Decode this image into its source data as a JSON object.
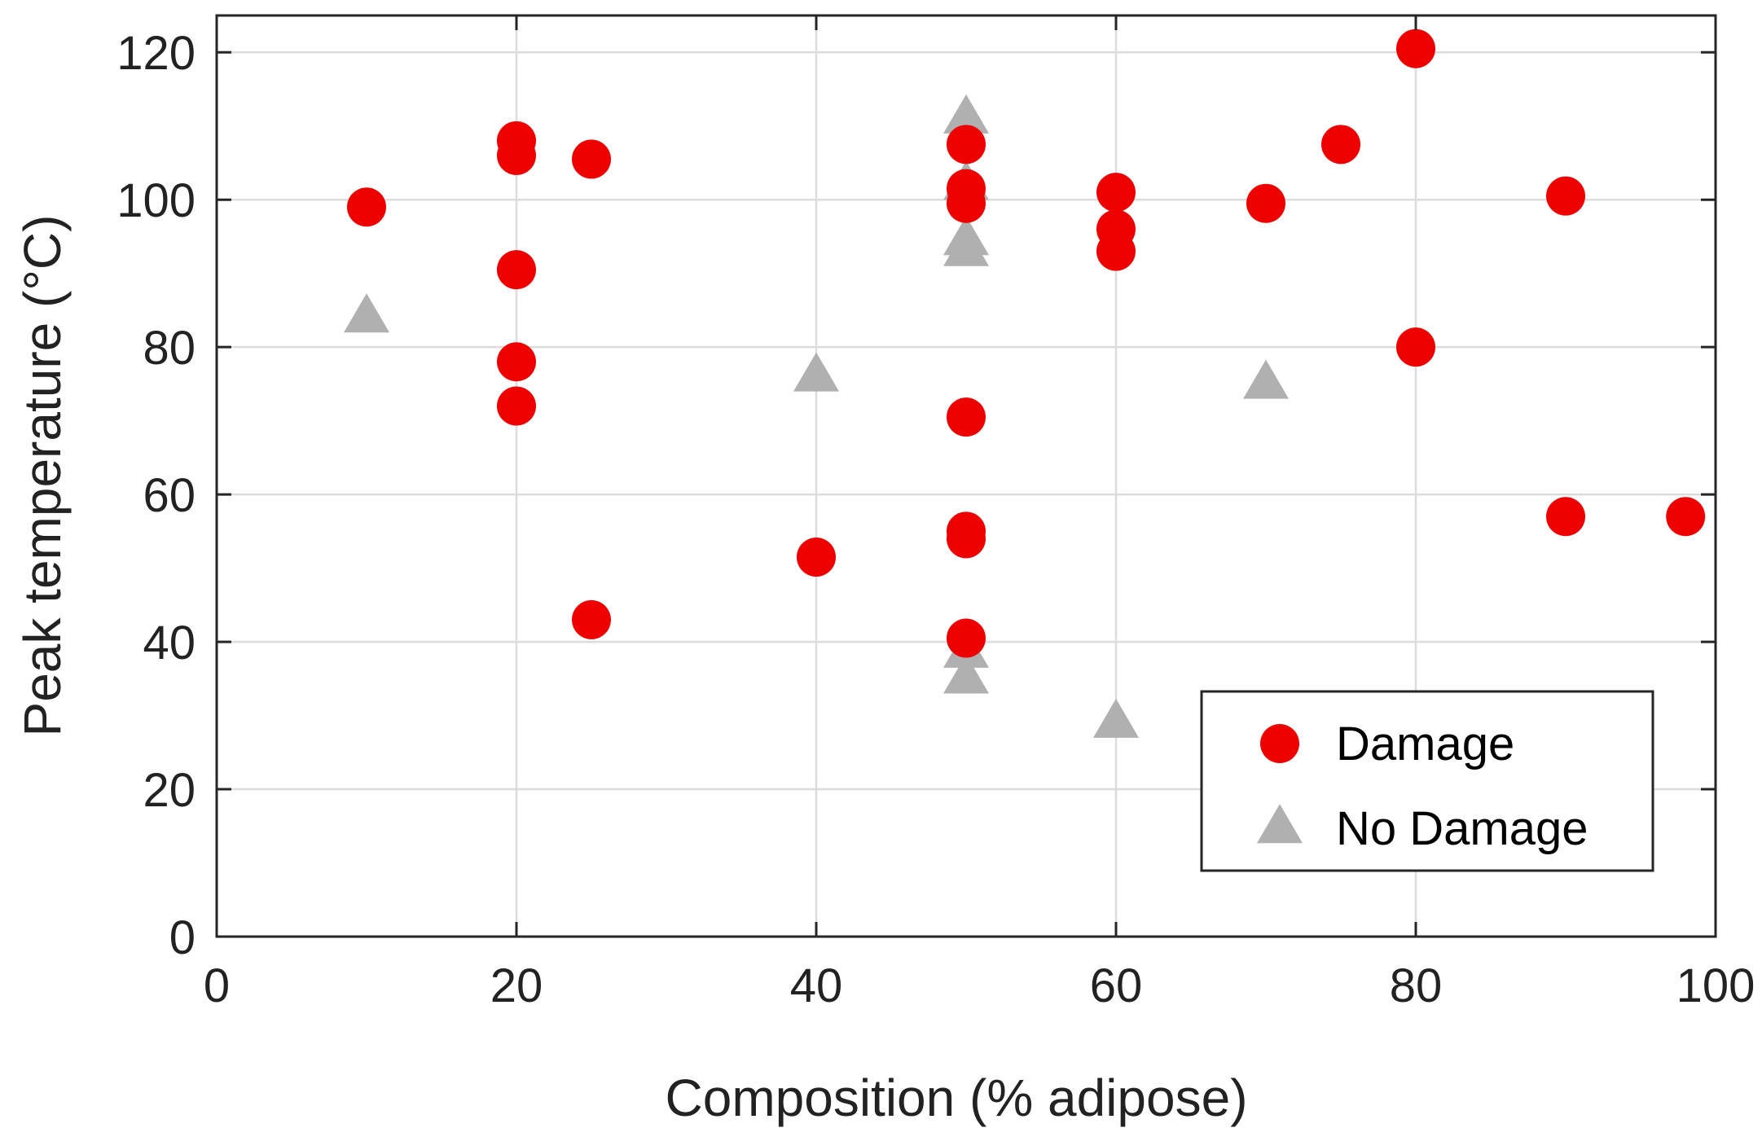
{
  "chart_data": {
    "type": "scatter",
    "title": "",
    "xlabel": "Composition (% adipose)",
    "ylabel": "Peak temperature (°C)",
    "xlim": [
      0,
      100
    ],
    "ylim": [
      0,
      125
    ],
    "xticks": [
      0,
      20,
      40,
      60,
      80,
      100
    ],
    "yticks": [
      0,
      20,
      40,
      60,
      80,
      100,
      120
    ],
    "grid": true,
    "legend_position": "bottom-right",
    "series": [
      {
        "name": "Damage",
        "marker": "circle",
        "color": "#ee0000",
        "points": [
          {
            "x": 10,
            "y": 99
          },
          {
            "x": 20,
            "y": 108
          },
          {
            "x": 20,
            "y": 106
          },
          {
            "x": 20,
            "y": 90.5
          },
          {
            "x": 20,
            "y": 78
          },
          {
            "x": 20,
            "y": 72
          },
          {
            "x": 25,
            "y": 105.5
          },
          {
            "x": 25,
            "y": 43
          },
          {
            "x": 40,
            "y": 51.5
          },
          {
            "x": 50,
            "y": 107.5
          },
          {
            "x": 50,
            "y": 101.5
          },
          {
            "x": 50,
            "y": 99.5
          },
          {
            "x": 50,
            "y": 70.5
          },
          {
            "x": 50,
            "y": 55
          },
          {
            "x": 50,
            "y": 54
          },
          {
            "x": 50,
            "y": 40.5
          },
          {
            "x": 60,
            "y": 101
          },
          {
            "x": 60,
            "y": 96
          },
          {
            "x": 60,
            "y": 93
          },
          {
            "x": 70,
            "y": 99.5
          },
          {
            "x": 75,
            "y": 107.5
          },
          {
            "x": 80,
            "y": 120.5
          },
          {
            "x": 80,
            "y": 80
          },
          {
            "x": 90,
            "y": 100.5
          },
          {
            "x": 90,
            "y": 57
          },
          {
            "x": 98,
            "y": 57
          }
        ]
      },
      {
        "name": "No Damage",
        "marker": "triangle",
        "color": "#b0b0b0",
        "points": [
          {
            "x": 10,
            "y": 84
          },
          {
            "x": 40,
            "y": 76
          },
          {
            "x": 50,
            "y": 111
          },
          {
            "x": 50,
            "y": 102
          },
          {
            "x": 50,
            "y": 94.5
          },
          {
            "x": 50,
            "y": 93
          },
          {
            "x": 50,
            "y": 38.5
          },
          {
            "x": 50,
            "y": 35
          },
          {
            "x": 60,
            "y": 29
          },
          {
            "x": 70,
            "y": 75
          }
        ]
      }
    ]
  }
}
